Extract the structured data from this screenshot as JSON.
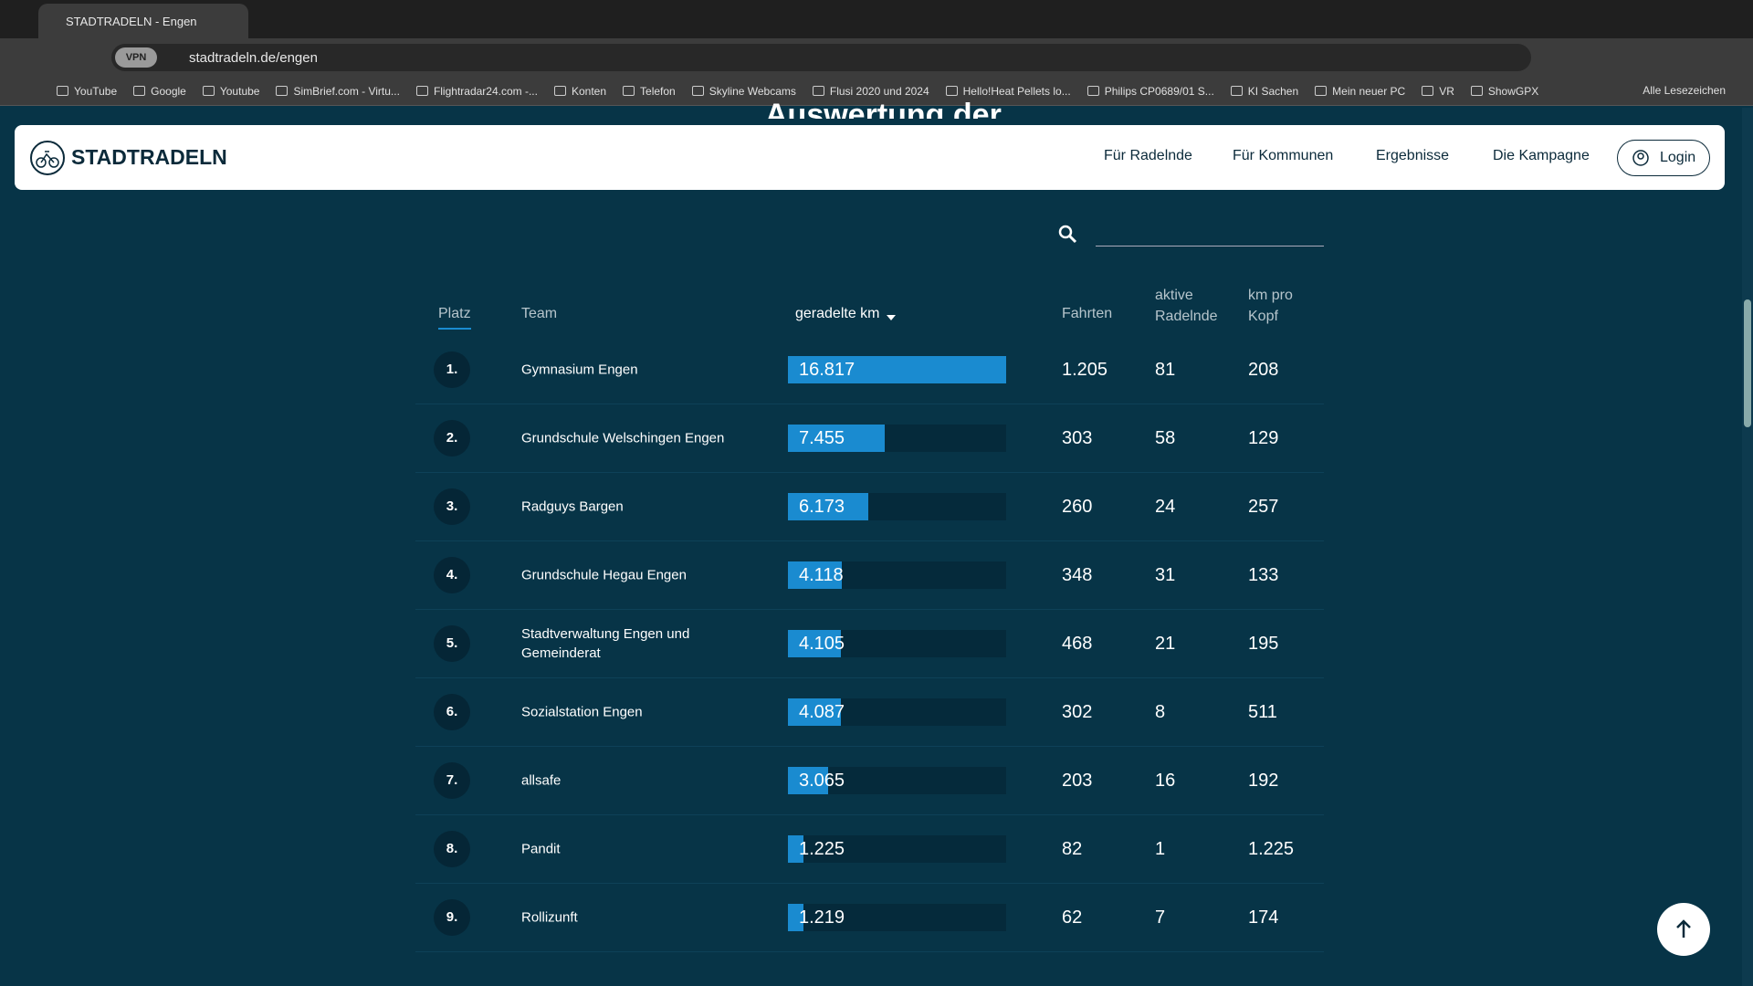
{
  "browser": {
    "tab_title": "STADTRADELN - Engen",
    "vpn": "VPN",
    "url": "stadtradeln.de/engen",
    "bookmarks": [
      "YouTube",
      "Google",
      "Youtube",
      "SimBrief.com - Virtu...",
      "Flightradar24.com -...",
      "Konten",
      "Telefon",
      "Skyline Webcams",
      "Flusi 2020 und 2024",
      "Hello!Heat Pellets lo...",
      "Philips CP0689/01 S...",
      "KI Sachen",
      "Mein neuer PC",
      "VR",
      "ShowGPX"
    ],
    "all_bookmarks": "Alle Lesezeichen"
  },
  "page": {
    "heading": "Auswertung der",
    "logo": "STADTRADELN",
    "nav": [
      "Für Radelnde",
      "Für Kommunen",
      "Ergebnisse",
      "Die Kampagne"
    ],
    "login": "Login"
  },
  "table": {
    "columns": [
      "Platz",
      "Team",
      "geradelte km",
      "Fahrten",
      "aktive Radelnde",
      "km pro Kopf"
    ],
    "rows": [
      {
        "rank": "1.",
        "team": "Gymnasium Engen",
        "km": "16.817",
        "trips": "1.205",
        "riders": "81",
        "per_head": "208"
      },
      {
        "rank": "2.",
        "team": "Grundschule Welschingen Engen",
        "km": "7.455",
        "trips": "303",
        "riders": "58",
        "per_head": "129"
      },
      {
        "rank": "3.",
        "team": "Radguys Bargen",
        "km": "6.173",
        "trips": "260",
        "riders": "24",
        "per_head": "257"
      },
      {
        "rank": "4.",
        "team": "Grundschule Hegau Engen",
        "km": "4.118",
        "trips": "348",
        "riders": "31",
        "per_head": "133"
      },
      {
        "rank": "5.",
        "team": "Stadtverwaltung Engen und Gemeinderat",
        "km": "4.105",
        "trips": "468",
        "riders": "21",
        "per_head": "195"
      },
      {
        "rank": "6.",
        "team": "Sozialstation Engen",
        "km": "4.087",
        "trips": "302",
        "riders": "8",
        "per_head": "511"
      },
      {
        "rank": "7.",
        "team": "allsafe",
        "km": "3.065",
        "trips": "203",
        "riders": "16",
        "per_head": "192"
      },
      {
        "rank": "8.",
        "team": "Pandit",
        "km": "1.225",
        "trips": "82",
        "riders": "1",
        "per_head": "1.225"
      },
      {
        "rank": "9.",
        "team": "Rollizunft",
        "km": "1.219",
        "trips": "62",
        "riders": "7",
        "per_head": "174"
      }
    ]
  }
}
